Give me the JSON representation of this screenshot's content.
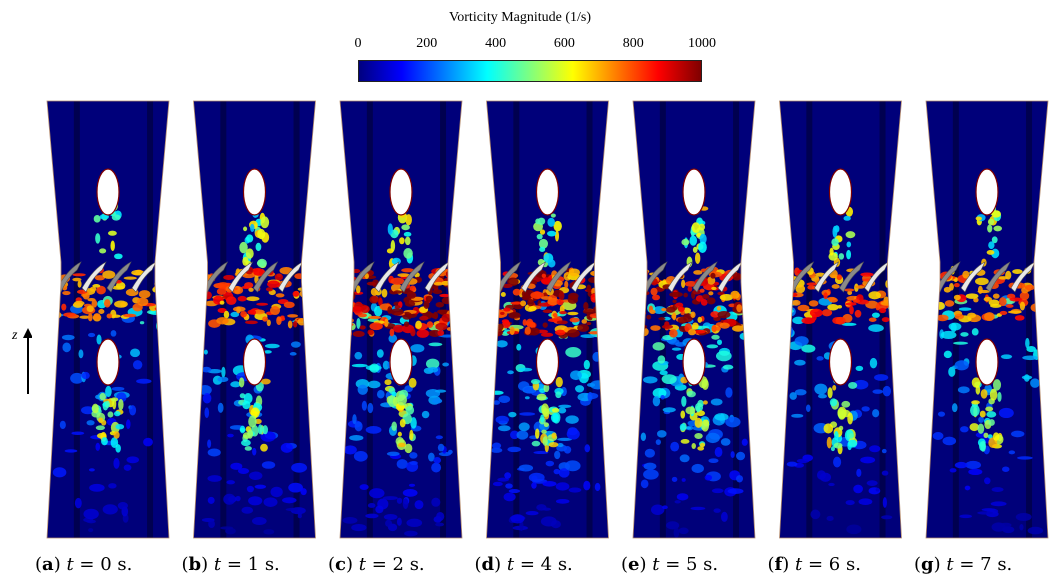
{
  "chart_data": {
    "type": "heatmap",
    "colorbar": {
      "title": "Vorticity Magnitude (1/s)",
      "min": 0,
      "max": 1000,
      "ticks": [
        "0",
        "200",
        "400",
        "600",
        "800",
        "1000"
      ],
      "colormap": [
        "#00007f",
        "#0000ff",
        "#007fff",
        "#00ffff",
        "#7fff7f",
        "#ffff00",
        "#ff7f00",
        "#ff0000",
        "#7f0000"
      ]
    },
    "axis_label": "z",
    "panels": [
      {
        "letter": "a",
        "t_text": "t",
        "equals": "= 0 s.",
        "time": 0,
        "upper_wake": 0.35,
        "shear_intensity": 0.45,
        "lower_turbulence": 0.45
      },
      {
        "letter": "b",
        "t_text": "t",
        "equals": "= 1 s.",
        "time": 1,
        "upper_wake": 0.6,
        "shear_intensity": 0.65,
        "lower_turbulence": 0.5
      },
      {
        "letter": "c",
        "t_text": "t",
        "equals": "= 2 s.",
        "time": 2,
        "upper_wake": 0.5,
        "shear_intensity": 1.0,
        "lower_turbulence": 0.8
      },
      {
        "letter": "d",
        "t_text": "t",
        "equals": "= 4 s.",
        "time": 4,
        "upper_wake": 0.45,
        "shear_intensity": 1.0,
        "lower_turbulence": 0.85
      },
      {
        "letter": "e",
        "t_text": "t",
        "equals": "= 5 s.",
        "time": 5,
        "upper_wake": 0.5,
        "shear_intensity": 0.95,
        "lower_turbulence": 0.8
      },
      {
        "letter": "f",
        "t_text": "t",
        "equals": "= 6 s.",
        "time": 6,
        "upper_wake": 0.4,
        "shear_intensity": 0.55,
        "lower_turbulence": 0.5
      },
      {
        "letter": "g",
        "t_text": "t",
        "equals": "= 7 s.",
        "time": 7,
        "upper_wake": 0.4,
        "shear_intensity": 0.5,
        "lower_turbulence": 0.5
      }
    ]
  }
}
